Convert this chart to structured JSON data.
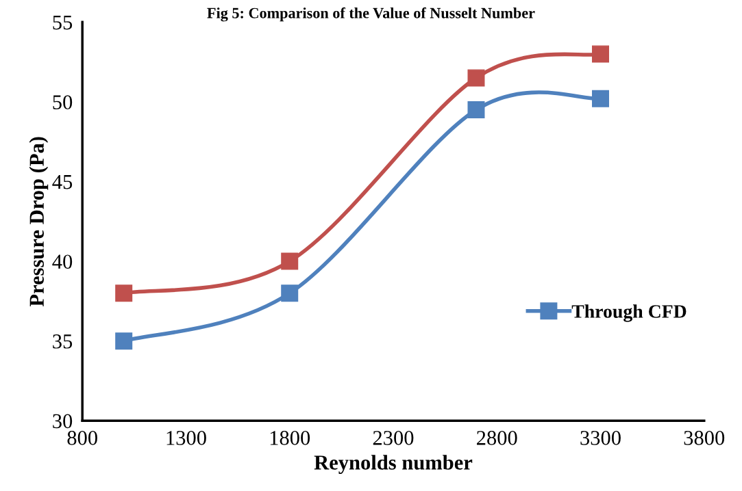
{
  "chart_data": {
    "type": "line",
    "title": "Fig 5: Comparison of the Value of Nusselt Number",
    "xlabel": "Reynolds number",
    "ylabel": "Pressure Drop (Pa)",
    "x": [
      1000,
      1800,
      2700,
      3300
    ],
    "series": [
      {
        "name": "Through CFD",
        "color": "#4f81bd",
        "values": [
          35,
          38,
          49.5,
          50.2
        ]
      },
      {
        "color": "#c0504d",
        "values": [
          38,
          40,
          51.5,
          53
        ]
      }
    ],
    "xlim": [
      800,
      3800
    ],
    "xticks": [
      800,
      1300,
      1800,
      2300,
      2800,
      3300,
      3800
    ],
    "ylim": [
      30,
      55
    ],
    "yticks": [
      30,
      35,
      40,
      45,
      50,
      55
    ],
    "grid": false,
    "legend": "right",
    "marker": "square",
    "line_style": "solid"
  }
}
